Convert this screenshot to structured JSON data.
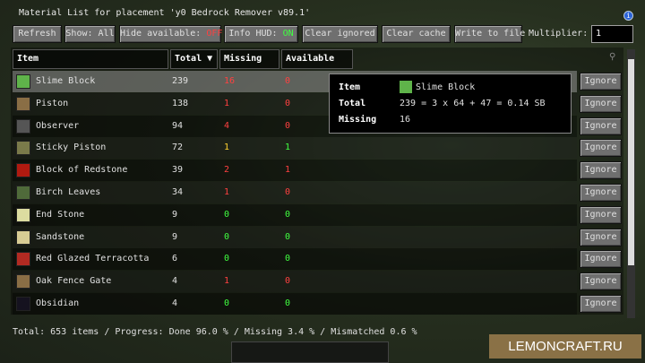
{
  "title": "Material List for placement 'y0 Bedrock Remover v89.1'",
  "toolbar": {
    "refresh": "Refresh",
    "show": "Show: All",
    "hide_label": "Hide available: ",
    "hide_val": "OFF",
    "hud_label": "Info HUD: ",
    "hud_val": "ON",
    "clear_ignored": "Clear ignored",
    "clear_cache": "Clear cache",
    "write": "Write to file",
    "multiplier_label": "Multiplier:",
    "multiplier_value": "1"
  },
  "columns": {
    "item": "Item",
    "total": "Total",
    "missing": "Missing",
    "available": "Available"
  },
  "ignore_label": "Ignore",
  "rows": [
    {
      "name": "Slime Block",
      "total": "239",
      "missing": "16",
      "available": "0",
      "mc": "red",
      "ac": "red",
      "color": "#5fb34a"
    },
    {
      "name": "Piston",
      "total": "138",
      "missing": "1",
      "available": "0",
      "mc": "red",
      "ac": "red",
      "color": "#8a6e45"
    },
    {
      "name": "Observer",
      "total": "94",
      "missing": "4",
      "available": "0",
      "mc": "red",
      "ac": "red",
      "color": "#555"
    },
    {
      "name": "Sticky Piston",
      "total": "72",
      "missing": "1",
      "available": "1",
      "mc": "yel",
      "ac": "grn",
      "color": "#7a7a4a"
    },
    {
      "name": "Block of Redstone",
      "total": "39",
      "missing": "2",
      "available": "1",
      "mc": "red",
      "ac": "red",
      "color": "#b01a10"
    },
    {
      "name": "Birch Leaves",
      "total": "34",
      "missing": "1",
      "available": "0",
      "mc": "red",
      "ac": "red",
      "color": "#4f6a3a"
    },
    {
      "name": "End Stone",
      "total": "9",
      "missing": "0",
      "available": "0",
      "mc": "grn",
      "ac": "grn",
      "color": "#dcdca0"
    },
    {
      "name": "Sandstone",
      "total": "9",
      "missing": "0",
      "available": "0",
      "mc": "grn",
      "ac": "grn",
      "color": "#d8cc94"
    },
    {
      "name": "Red Glazed Terracotta",
      "total": "6",
      "missing": "0",
      "available": "0",
      "mc": "grn",
      "ac": "grn",
      "color": "#b22a22"
    },
    {
      "name": "Oak Fence Gate",
      "total": "4",
      "missing": "1",
      "available": "0",
      "mc": "red",
      "ac": "red",
      "color": "#8a6e45"
    },
    {
      "name": "Obsidian",
      "total": "4",
      "missing": "0",
      "available": "0",
      "mc": "grn",
      "ac": "grn",
      "color": "#15121f"
    }
  ],
  "tooltip": {
    "item_label": "Item",
    "item": "Slime Block",
    "total_label": "Total",
    "total": "239 = 3 x 64 + 47 = 0.14 SB",
    "missing_label": "Missing",
    "missing": "16"
  },
  "footer": "Total: 653 items / Progress: Done 96.0 % / Missing 3.4 % / Mismatched 0.6 %",
  "watermark": "LEMONCRAFT.RU"
}
